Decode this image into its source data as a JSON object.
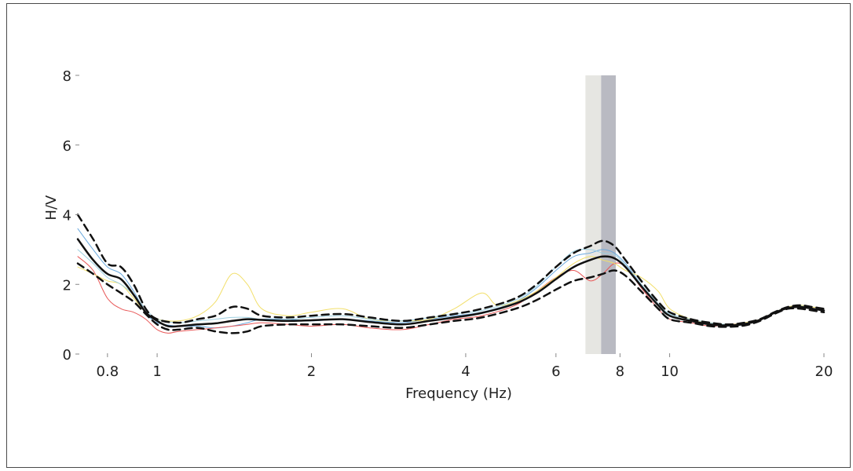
{
  "chart_data": {
    "type": "line",
    "xlabel": "Frequency (Hz)",
    "ylabel": "H/V",
    "x_scale": "log",
    "xlim": [
      0.7,
      20
    ],
    "ylim": [
      0,
      8
    ],
    "x_ticks": [
      0.8,
      1,
      2,
      4,
      6,
      8,
      10,
      20
    ],
    "x_tick_labels": [
      "0.8",
      "1",
      "2",
      "4",
      "6",
      "8",
      "10",
      "20"
    ],
    "y_ticks": [
      0,
      2,
      4,
      6,
      8
    ],
    "y_tick_labels": [
      "0",
      "2",
      "4",
      "6",
      "8"
    ],
    "grid": false,
    "legend": "none",
    "peak_bands": [
      {
        "x0": 6.85,
        "x1": 7.35,
        "color": "#e6e6e2"
      },
      {
        "x0": 7.35,
        "x1": 7.85,
        "color": "#b9bac2"
      }
    ],
    "series": [
      {
        "style": "dashed",
        "color": "#111111",
        "width": 2.5,
        "points": [
          [
            0.7,
            4.0
          ],
          [
            0.75,
            3.3
          ],
          [
            0.8,
            2.6
          ],
          [
            0.85,
            2.5
          ],
          [
            0.9,
            2.0
          ],
          [
            0.95,
            1.3
          ],
          [
            1.0,
            1.0
          ],
          [
            1.1,
            0.9
          ],
          [
            1.2,
            1.0
          ],
          [
            1.3,
            1.1
          ],
          [
            1.4,
            1.35
          ],
          [
            1.5,
            1.3
          ],
          [
            1.6,
            1.1
          ],
          [
            1.8,
            1.05
          ],
          [
            2.0,
            1.1
          ],
          [
            2.3,
            1.15
          ],
          [
            2.6,
            1.05
          ],
          [
            3.0,
            0.95
          ],
          [
            3.4,
            1.05
          ],
          [
            3.8,
            1.15
          ],
          [
            4.3,
            1.3
          ],
          [
            5.0,
            1.6
          ],
          [
            5.5,
            2.0
          ],
          [
            6.0,
            2.5
          ],
          [
            6.5,
            2.9
          ],
          [
            7.0,
            3.1
          ],
          [
            7.4,
            3.25
          ],
          [
            7.8,
            3.1
          ],
          [
            8.2,
            2.7
          ],
          [
            8.8,
            2.1
          ],
          [
            9.5,
            1.5
          ],
          [
            10,
            1.2
          ],
          [
            11,
            1.0
          ],
          [
            12,
            0.9
          ],
          [
            13,
            0.85
          ],
          [
            14,
            0.9
          ],
          [
            15,
            1.0
          ],
          [
            16,
            1.2
          ],
          [
            17,
            1.35
          ],
          [
            18,
            1.4
          ],
          [
            19,
            1.35
          ],
          [
            20,
            1.3
          ]
        ]
      },
      {
        "style": "dashed",
        "color": "#111111",
        "width": 2.5,
        "points": [
          [
            0.7,
            2.6
          ],
          [
            0.75,
            2.3
          ],
          [
            0.8,
            2.0
          ],
          [
            0.85,
            1.75
          ],
          [
            0.9,
            1.5
          ],
          [
            0.95,
            1.15
          ],
          [
            1.0,
            0.85
          ],
          [
            1.05,
            0.7
          ],
          [
            1.1,
            0.7
          ],
          [
            1.2,
            0.75
          ],
          [
            1.3,
            0.65
          ],
          [
            1.4,
            0.6
          ],
          [
            1.5,
            0.65
          ],
          [
            1.6,
            0.8
          ],
          [
            1.8,
            0.85
          ],
          [
            2.0,
            0.85
          ],
          [
            2.3,
            0.85
          ],
          [
            2.6,
            0.8
          ],
          [
            3.0,
            0.75
          ],
          [
            3.4,
            0.85
          ],
          [
            3.8,
            0.95
          ],
          [
            4.3,
            1.05
          ],
          [
            5.0,
            1.3
          ],
          [
            5.5,
            1.55
          ],
          [
            6.0,
            1.85
          ],
          [
            6.5,
            2.1
          ],
          [
            7.0,
            2.2
          ],
          [
            7.4,
            2.3
          ],
          [
            7.8,
            2.4
          ],
          [
            8.2,
            2.25
          ],
          [
            8.8,
            1.8
          ],
          [
            9.5,
            1.3
          ],
          [
            10,
            1.0
          ],
          [
            11,
            0.9
          ],
          [
            12,
            0.8
          ],
          [
            13,
            0.78
          ],
          [
            14,
            0.82
          ],
          [
            15,
            0.95
          ],
          [
            16,
            1.15
          ],
          [
            17,
            1.3
          ],
          [
            18,
            1.3
          ],
          [
            19,
            1.25
          ],
          [
            20,
            1.2
          ]
        ]
      },
      {
        "style": "solid",
        "color": "#111111",
        "width": 2.5,
        "points": [
          [
            0.7,
            3.3
          ],
          [
            0.75,
            2.7
          ],
          [
            0.8,
            2.3
          ],
          [
            0.85,
            2.15
          ],
          [
            0.9,
            1.7
          ],
          [
            0.95,
            1.2
          ],
          [
            1.0,
            0.95
          ],
          [
            1.05,
            0.8
          ],
          [
            1.1,
            0.8
          ],
          [
            1.2,
            0.85
          ],
          [
            1.3,
            0.88
          ],
          [
            1.4,
            0.95
          ],
          [
            1.5,
            1.0
          ],
          [
            1.6,
            0.98
          ],
          [
            1.8,
            0.95
          ],
          [
            2.0,
            0.97
          ],
          [
            2.3,
            1.0
          ],
          [
            2.6,
            0.92
          ],
          [
            3.0,
            0.85
          ],
          [
            3.4,
            0.95
          ],
          [
            3.8,
            1.05
          ],
          [
            4.3,
            1.18
          ],
          [
            5.0,
            1.45
          ],
          [
            5.5,
            1.75
          ],
          [
            6.0,
            2.15
          ],
          [
            6.5,
            2.5
          ],
          [
            7.0,
            2.7
          ],
          [
            7.4,
            2.8
          ],
          [
            7.8,
            2.75
          ],
          [
            8.2,
            2.5
          ],
          [
            8.8,
            1.95
          ],
          [
            9.5,
            1.4
          ],
          [
            10,
            1.1
          ],
          [
            11,
            0.95
          ],
          [
            12,
            0.85
          ],
          [
            13,
            0.82
          ],
          [
            14,
            0.86
          ],
          [
            15,
            0.98
          ],
          [
            16,
            1.18
          ],
          [
            17,
            1.32
          ],
          [
            18,
            1.35
          ],
          [
            19,
            1.3
          ],
          [
            20,
            1.25
          ]
        ]
      },
      {
        "style": "solid",
        "color": "#6aa9de",
        "width": 1,
        "points": [
          [
            0.7,
            3.6
          ],
          [
            0.75,
            3.0
          ],
          [
            0.8,
            2.5
          ],
          [
            0.85,
            2.3
          ],
          [
            0.9,
            1.8
          ],
          [
            0.95,
            1.2
          ],
          [
            1.0,
            0.9
          ],
          [
            1.1,
            0.8
          ],
          [
            1.2,
            0.8
          ],
          [
            1.3,
            0.75
          ],
          [
            1.4,
            0.8
          ],
          [
            1.5,
            0.9
          ],
          [
            1.6,
            1.0
          ],
          [
            1.8,
            1.0
          ],
          [
            2.0,
            0.95
          ],
          [
            2.3,
            1.0
          ],
          [
            2.6,
            0.95
          ],
          [
            3.0,
            0.9
          ],
          [
            3.4,
            1.0
          ],
          [
            3.8,
            1.1
          ],
          [
            4.3,
            1.2
          ],
          [
            5.0,
            1.5
          ],
          [
            5.5,
            1.9
          ],
          [
            6.0,
            2.4
          ],
          [
            6.5,
            2.8
          ],
          [
            7.0,
            2.9
          ],
          [
            7.4,
            3.0
          ],
          [
            7.8,
            2.9
          ],
          [
            8.2,
            2.6
          ],
          [
            8.8,
            2.0
          ],
          [
            9.5,
            1.4
          ],
          [
            10,
            1.1
          ],
          [
            11,
            0.95
          ],
          [
            12,
            0.85
          ],
          [
            13,
            0.8
          ],
          [
            14,
            0.85
          ],
          [
            15,
            1.0
          ],
          [
            16,
            1.2
          ],
          [
            17,
            1.35
          ],
          [
            18,
            1.38
          ],
          [
            19,
            1.3
          ],
          [
            20,
            1.25
          ]
        ]
      },
      {
        "style": "solid",
        "color": "#e85858",
        "width": 1,
        "points": [
          [
            0.7,
            2.8
          ],
          [
            0.75,
            2.4
          ],
          [
            0.8,
            1.6
          ],
          [
            0.85,
            1.3
          ],
          [
            0.9,
            1.2
          ],
          [
            0.95,
            1.0
          ],
          [
            1.0,
            0.7
          ],
          [
            1.05,
            0.6
          ],
          [
            1.1,
            0.65
          ],
          [
            1.2,
            0.7
          ],
          [
            1.3,
            0.75
          ],
          [
            1.4,
            0.8
          ],
          [
            1.5,
            0.85
          ],
          [
            1.6,
            0.9
          ],
          [
            1.8,
            0.85
          ],
          [
            2.0,
            0.8
          ],
          [
            2.3,
            0.85
          ],
          [
            2.6,
            0.75
          ],
          [
            3.0,
            0.7
          ],
          [
            3.4,
            0.85
          ],
          [
            3.8,
            1.0
          ],
          [
            4.3,
            1.1
          ],
          [
            5.0,
            1.4
          ],
          [
            5.5,
            1.8
          ],
          [
            6.0,
            2.2
          ],
          [
            6.5,
            2.4
          ],
          [
            7.0,
            2.1
          ],
          [
            7.4,
            2.3
          ],
          [
            7.8,
            2.6
          ],
          [
            8.2,
            2.5
          ],
          [
            8.8,
            1.9
          ],
          [
            9.5,
            1.3
          ],
          [
            10,
            1.0
          ],
          [
            11,
            0.9
          ],
          [
            12,
            0.8
          ],
          [
            13,
            0.85
          ],
          [
            14,
            0.9
          ],
          [
            15,
            1.0
          ],
          [
            16,
            1.2
          ],
          [
            17,
            1.3
          ],
          [
            18,
            1.35
          ],
          [
            19,
            1.3
          ],
          [
            20,
            1.25
          ]
        ]
      },
      {
        "style": "solid",
        "color": "#f2df6a",
        "width": 1,
        "points": [
          [
            0.7,
            2.5
          ],
          [
            0.75,
            2.3
          ],
          [
            0.8,
            2.1
          ],
          [
            0.85,
            2.0
          ],
          [
            0.9,
            1.6
          ],
          [
            0.95,
            1.2
          ],
          [
            1.0,
            1.0
          ],
          [
            1.1,
            0.95
          ],
          [
            1.2,
            1.1
          ],
          [
            1.3,
            1.5
          ],
          [
            1.4,
            2.3
          ],
          [
            1.5,
            2.0
          ],
          [
            1.6,
            1.3
          ],
          [
            1.8,
            1.1
          ],
          [
            2.0,
            1.2
          ],
          [
            2.3,
            1.3
          ],
          [
            2.6,
            1.0
          ],
          [
            3.0,
            0.95
          ],
          [
            3.4,
            1.0
          ],
          [
            3.8,
            1.3
          ],
          [
            4.3,
            1.75
          ],
          [
            4.6,
            1.4
          ],
          [
            5.0,
            1.5
          ],
          [
            5.5,
            1.8
          ],
          [
            6.0,
            2.2
          ],
          [
            6.5,
            2.6
          ],
          [
            7.0,
            2.8
          ],
          [
            7.4,
            2.7
          ],
          [
            7.8,
            2.6
          ],
          [
            8.2,
            2.4
          ],
          [
            8.8,
            2.2
          ],
          [
            9.5,
            1.8
          ],
          [
            10,
            1.3
          ],
          [
            11,
            1.0
          ],
          [
            12,
            0.9
          ],
          [
            13,
            0.85
          ],
          [
            14,
            0.9
          ],
          [
            15,
            1.0
          ],
          [
            16,
            1.2
          ],
          [
            17,
            1.35
          ],
          [
            18,
            1.4
          ],
          [
            19,
            1.35
          ],
          [
            20,
            1.3
          ]
        ]
      },
      {
        "style": "solid",
        "color": "#9ecfe0",
        "width": 1,
        "points": [
          [
            0.7,
            3.0
          ],
          [
            0.75,
            2.6
          ],
          [
            0.8,
            2.2
          ],
          [
            0.85,
            2.0
          ],
          [
            0.9,
            1.7
          ],
          [
            0.95,
            1.3
          ],
          [
            1.0,
            1.0
          ],
          [
            1.1,
            0.9
          ],
          [
            1.2,
            0.95
          ],
          [
            1.3,
            1.0
          ],
          [
            1.4,
            1.05
          ],
          [
            1.5,
            1.05
          ],
          [
            1.6,
            1.0
          ],
          [
            1.8,
            1.0
          ],
          [
            2.0,
            1.05
          ],
          [
            2.3,
            1.1
          ],
          [
            2.6,
            1.0
          ],
          [
            3.0,
            0.95
          ],
          [
            3.4,
            1.05
          ],
          [
            3.8,
            1.15
          ],
          [
            4.3,
            1.25
          ],
          [
            5.0,
            1.55
          ],
          [
            5.5,
            1.95
          ],
          [
            6.0,
            2.5
          ],
          [
            6.5,
            2.95
          ],
          [
            7.0,
            3.0
          ],
          [
            7.4,
            2.9
          ],
          [
            7.8,
            2.85
          ],
          [
            8.2,
            2.55
          ],
          [
            8.8,
            2.0
          ],
          [
            9.5,
            1.45
          ],
          [
            10,
            1.15
          ],
          [
            11,
            1.0
          ],
          [
            12,
            0.9
          ],
          [
            13,
            0.85
          ],
          [
            14,
            0.88
          ],
          [
            15,
            1.0
          ],
          [
            16,
            1.2
          ],
          [
            17,
            1.33
          ],
          [
            18,
            1.36
          ],
          [
            19,
            1.3
          ],
          [
            20,
            1.26
          ]
        ]
      }
    ]
  }
}
